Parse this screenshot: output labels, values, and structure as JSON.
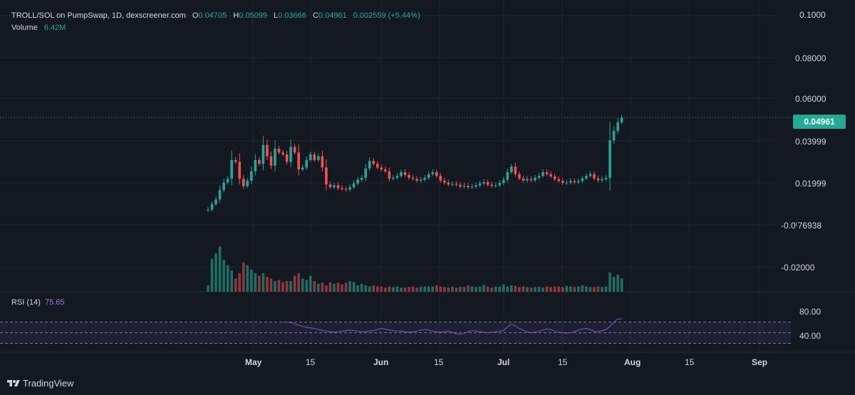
{
  "header": {
    "symbol": "TROLL/SOL on PumpSwap, 1D, dexscreener.com",
    "o_label": "O",
    "o": "0.04705",
    "h_label": "H",
    "h": "0.05099",
    "l_label": "L",
    "l": "0.03666",
    "c_label": "C",
    "c": "0.04961",
    "change": "0.002559 (+5.44%)",
    "volume_label": "Volume",
    "volume": "6.42M"
  },
  "rsi": {
    "label": "RSI (14)",
    "value": "75.65",
    "upper": "80.00",
    "lower": "40.00"
  },
  "current_price": "0.04961",
  "y_axis_labels": [
    "0.1000",
    "0.08000",
    "0.06000",
    "0.03999",
    "0.01999",
    "-0.0⁽76938",
    "-0.02000"
  ],
  "x_axis_labels": [
    "May",
    "15",
    "Jun",
    "15",
    "Jul",
    "15",
    "Aug",
    "15",
    "Sep"
  ],
  "branding": "TradingView",
  "colors": {
    "up": "#26a69a",
    "down": "#ef5350",
    "rsi": "#7e57c2",
    "bg": "#141821"
  },
  "chart_data": {
    "type": "candlestick",
    "ylim": [
      -0.03,
      0.104
    ],
    "closes": [
      0.0005,
      0.0035,
      0.006,
      0.011,
      0.015,
      0.017,
      0.027,
      0.026,
      0.017,
      0.013,
      0.016,
      0.021,
      0.027,
      0.025,
      0.035,
      0.029,
      0.024,
      0.033,
      0.031,
      0.03,
      0.026,
      0.034,
      0.031,
      0.022,
      0.023,
      0.027,
      0.03,
      0.027,
      0.029,
      0.023,
      0.014,
      0.0125,
      0.0135,
      0.012,
      0.0115,
      0.0112,
      0.0125,
      0.0145,
      0.0165,
      0.0175,
      0.0225,
      0.0265,
      0.025,
      0.023,
      0.022,
      0.021,
      0.017,
      0.0175,
      0.0185,
      0.0205,
      0.019,
      0.0175,
      0.017,
      0.016,
      0.0165,
      0.0175,
      0.0195,
      0.0205,
      0.0185,
      0.016,
      0.015,
      0.014,
      0.0142,
      0.0138,
      0.0128,
      0.0132,
      0.0125,
      0.0128,
      0.0135,
      0.0145,
      0.0152,
      0.0138,
      0.0132,
      0.0135,
      0.0148,
      0.0165,
      0.0205,
      0.0235,
      0.0195,
      0.0172,
      0.016,
      0.0168,
      0.0162,
      0.0175,
      0.0185,
      0.0205,
      0.0195,
      0.0182,
      0.0168,
      0.0158,
      0.0148,
      0.015,
      0.0158,
      0.0152,
      0.0158,
      0.0172,
      0.0185,
      0.0195,
      0.0172,
      0.0162,
      0.0168,
      0.0175,
      0.0375,
      0.0425,
      0.0471,
      0.0496
    ],
    "volumes": [
      0.12,
      0.62,
      0.72,
      0.85,
      0.6,
      0.5,
      0.4,
      0.25,
      0.35,
      0.55,
      0.5,
      0.42,
      0.35,
      0.3,
      0.35,
      0.28,
      0.25,
      0.2,
      0.22,
      0.18,
      0.2,
      0.2,
      0.3,
      0.35,
      0.25,
      0.22,
      0.3,
      0.2,
      0.15,
      0.17,
      0.12,
      0.18,
      0.15,
      0.17,
      0.14,
      0.17,
      0.2,
      0.18,
      0.12,
      0.15,
      0.12,
      0.1,
      0.12,
      0.1,
      0.1,
      0.08,
      0.1,
      0.09,
      0.1,
      0.08,
      0.08,
      0.09,
      0.1,
      0.08,
      0.09,
      0.1,
      0.1,
      0.1,
      0.12,
      0.1,
      0.09,
      0.08,
      0.1,
      0.08,
      0.09,
      0.09,
      0.12,
      0.1,
      0.09,
      0.1,
      0.13,
      0.1,
      0.08,
      0.1,
      0.1,
      0.14,
      0.1,
      0.12,
      0.11,
      0.09,
      0.1,
      0.09,
      0.08,
      0.09,
      0.09,
      0.08,
      0.1,
      0.09,
      0.1,
      0.1,
      0.09,
      0.11,
      0.1,
      0.09,
      0.1,
      0.12,
      0.1,
      0.09,
      0.09,
      0.1,
      0.09,
      0.1,
      0.36,
      0.28,
      0.32,
      0.25
    ],
    "rsi_values": [
      70,
      70,
      69,
      67,
      64,
      62,
      60,
      59,
      58,
      56,
      54,
      53,
      52,
      51,
      52,
      53,
      54,
      55,
      54,
      53,
      52,
      52,
      53,
      54,
      56,
      58,
      57,
      55,
      54,
      53,
      53,
      52,
      51,
      52,
      53,
      55,
      56,
      55,
      53,
      52,
      51,
      52,
      53,
      51,
      48,
      47,
      49,
      52,
      54,
      53,
      52,
      51,
      50,
      51,
      52,
      53,
      54,
      61,
      66,
      63,
      58,
      55,
      52,
      50,
      51,
      53,
      55,
      57,
      56,
      53,
      51,
      50,
      49,
      50,
      52,
      55,
      57,
      58,
      56,
      53,
      52,
      54,
      56,
      62,
      70,
      76,
      75.65
    ]
  }
}
